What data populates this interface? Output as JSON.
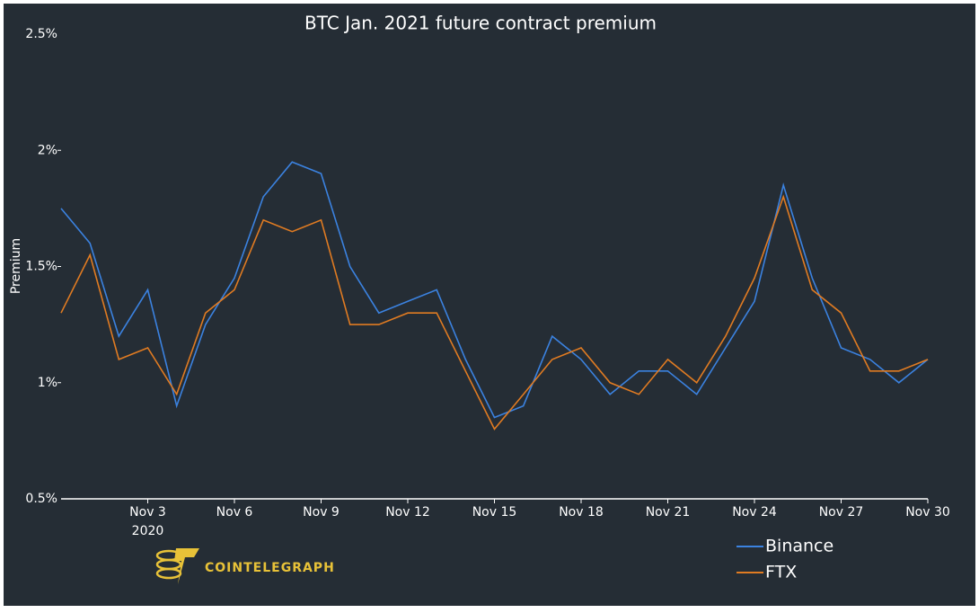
{
  "chart_data": {
    "type": "line",
    "title": "BTC Jan. 2021 future contract premium",
    "y_label": "Premium",
    "x": [
      "2020-10-31",
      "2020-11-01",
      "2020-11-02",
      "2020-11-03",
      "2020-11-04",
      "2020-11-05",
      "2020-11-06",
      "2020-11-07",
      "2020-11-08",
      "2020-11-09",
      "2020-11-10",
      "2020-11-11",
      "2020-11-12",
      "2020-11-13",
      "2020-11-14",
      "2020-11-15",
      "2020-11-16",
      "2020-11-17",
      "2020-11-18",
      "2020-11-19",
      "2020-11-20",
      "2020-11-21",
      "2020-11-22",
      "2020-11-23",
      "2020-11-24",
      "2020-11-25",
      "2020-11-26",
      "2020-11-27",
      "2020-11-28",
      "2020-11-29",
      "2020-11-30"
    ],
    "series": [
      {
        "name": "Binance",
        "color": "#3b82e0",
        "values": [
          1.75,
          1.6,
          1.2,
          1.4,
          0.9,
          1.25,
          1.45,
          1.8,
          1.95,
          1.9,
          1.5,
          1.3,
          1.35,
          1.4,
          1.1,
          0.85,
          0.9,
          1.2,
          1.1,
          0.95,
          1.05,
          1.05,
          0.95,
          1.15,
          1.35,
          1.85,
          1.45,
          1.15,
          1.1,
          1.0,
          1.1
        ]
      },
      {
        "name": "FTX",
        "color": "#e07b22",
        "values": [
          1.3,
          1.55,
          1.1,
          1.15,
          0.95,
          1.3,
          1.4,
          1.7,
          1.65,
          1.7,
          1.25,
          1.25,
          1.3,
          1.3,
          1.05,
          0.8,
          0.95,
          1.1,
          1.15,
          1.0,
          0.95,
          1.1,
          1.0,
          1.2,
          1.45,
          1.8,
          1.4,
          1.3,
          1.05,
          1.05,
          1.1
        ]
      }
    ],
    "xlim": [
      "2020-10-31",
      "2020-11-30"
    ],
    "xticks": [
      {
        "value": "2020-11-03",
        "label": "Nov 3"
      },
      {
        "value": "2020-11-06",
        "label": "Nov 6"
      },
      {
        "value": "2020-11-09",
        "label": "Nov 9"
      },
      {
        "value": "2020-11-12",
        "label": "Nov 12"
      },
      {
        "value": "2020-11-15",
        "label": "Nov 15"
      },
      {
        "value": "2020-11-18",
        "label": "Nov 18"
      },
      {
        "value": "2020-11-21",
        "label": "Nov 21"
      },
      {
        "value": "2020-11-24",
        "label": "Nov 24"
      },
      {
        "value": "2020-11-27",
        "label": "Nov 27"
      },
      {
        "value": "2020-11-30",
        "label": "Nov 30"
      }
    ],
    "x_year_label": "2020",
    "ylim": [
      0.5,
      2.5
    ],
    "yticks": [
      {
        "value": 0.5,
        "label": "0.5%"
      },
      {
        "value": 1,
        "label": "1%"
      },
      {
        "value": 1.5,
        "label": "1.5%"
      },
      {
        "value": 2,
        "label": "2%"
      },
      {
        "value": 2.5,
        "label": "2.5%"
      }
    ],
    "legend": "bottom-right",
    "logo_text": "COINTELEGRAPH"
  }
}
